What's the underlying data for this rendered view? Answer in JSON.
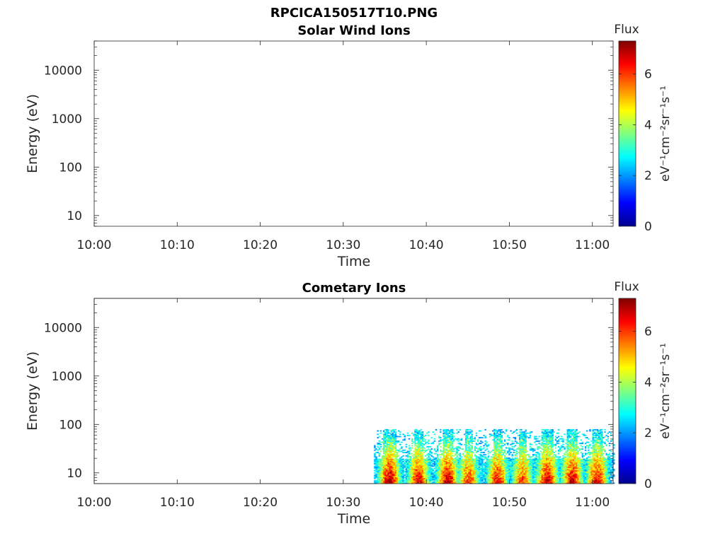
{
  "figure_title": "RPCICA150517T10.PNG",
  "colorbar": {
    "title": "Flux",
    "unit_label": "eV⁻¹cm⁻²sr⁻¹s⁻¹",
    "range": [
      0,
      7.3
    ],
    "ticks": [
      0,
      2,
      4,
      6
    ],
    "colormap": [
      "#00008f",
      "#0000ff",
      "#00ffff",
      "#ffff00",
      "#ff0000",
      "#800000"
    ]
  },
  "chart_data": [
    {
      "type": "heatmap",
      "title": "Solar Wind Ions",
      "xlabel": "Time",
      "ylabel": "Energy (eV)",
      "x_ticks": [
        "10:00",
        "10:10",
        "10:20",
        "10:30",
        "10:40",
        "10:50",
        "11:00"
      ],
      "x_range_minutes_after_10": [
        0,
        62.5
      ],
      "y_scale": "log",
      "y_ticks": [
        "10",
        "100",
        "1000",
        "10000"
      ],
      "y_range": [
        6,
        40000
      ],
      "data": "empty (no flux recorded)",
      "colorbar": "Flux"
    },
    {
      "type": "heatmap",
      "title": "Cometary Ions",
      "xlabel": "Time",
      "ylabel": "Energy (eV)",
      "x_ticks": [
        "10:00",
        "10:10",
        "10:20",
        "10:30",
        "10:40",
        "10:50",
        "11:00"
      ],
      "x_range_minutes_after_10": [
        0,
        62.5
      ],
      "y_scale": "log",
      "y_ticks": [
        "10",
        "100",
        "1000",
        "10000"
      ],
      "y_range": [
        6,
        40000
      ],
      "data_region": {
        "time_start_minutes_after_10": 33.7,
        "time_end_minutes_after_10": 62.5,
        "energy_range_eV": [
          6,
          80
        ]
      },
      "flux_bursts": [
        {
          "center_min": 35.5,
          "peak": 6.8
        },
        {
          "center_min": 39.0,
          "peak": 6.2
        },
        {
          "center_min": 42.5,
          "peak": 6.6
        },
        {
          "center_min": 45.0,
          "peak": 5.6
        },
        {
          "center_min": 48.5,
          "peak": 6.0
        },
        {
          "center_min": 51.5,
          "peak": 5.5
        },
        {
          "center_min": 54.5,
          "peak": 6.5
        },
        {
          "center_min": 57.5,
          "peak": 6.4
        },
        {
          "center_min": 60.5,
          "peak": 6.3
        }
      ],
      "colorbar": "Flux"
    }
  ]
}
